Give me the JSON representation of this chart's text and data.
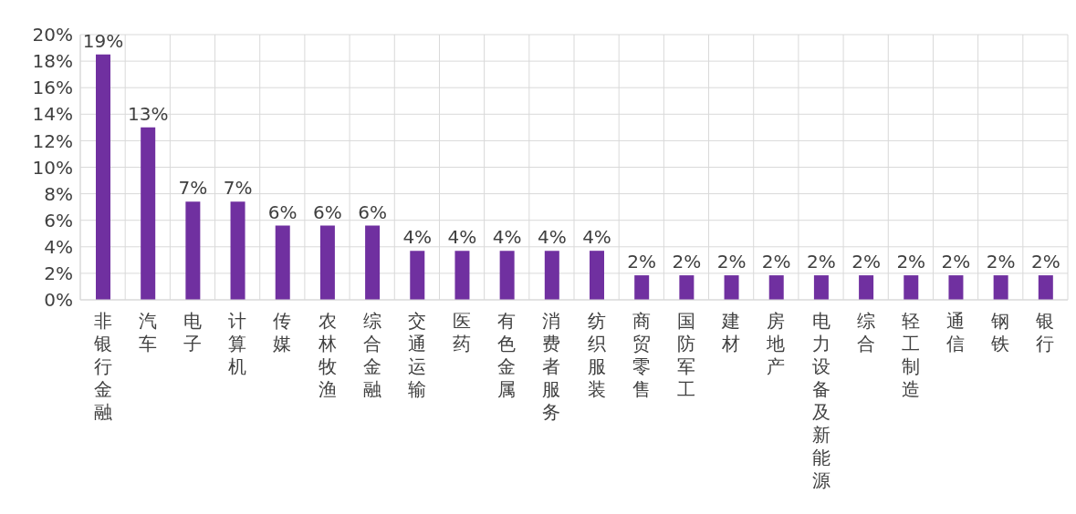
{
  "chart_data": {
    "type": "bar",
    "categories": [
      "非银行金融",
      "汽车",
      "电子",
      "计算机",
      "传媒",
      "农林牧渔",
      "综合金融",
      "交通运输",
      "医药",
      "有色金属",
      "消费者服务",
      "纺织服装",
      "商贸零售",
      "国防军工",
      "建材",
      "房地产",
      "电力设备及新能源",
      "综合",
      "轻工制造",
      "通信",
      "钢铁",
      "银行"
    ],
    "values": [
      18.5,
      13.0,
      7.4,
      7.4,
      5.6,
      5.6,
      5.6,
      3.7,
      3.7,
      3.7,
      3.7,
      3.7,
      1.85,
      1.85,
      1.85,
      1.85,
      1.85,
      1.85,
      1.85,
      1.85,
      1.85,
      1.85
    ],
    "value_labels": [
      "19%",
      "13%",
      "7%",
      "7%",
      "6%",
      "6%",
      "6%",
      "4%",
      "4%",
      "4%",
      "4%",
      "4%",
      "2%",
      "2%",
      "2%",
      "2%",
      "2%",
      "2%",
      "2%",
      "2%",
      "2%",
      "2%"
    ],
    "color": "#7030a0",
    "ylim": [
      0,
      20
    ],
    "yticks": [
      {
        "value": 0,
        "label": "0%"
      },
      {
        "value": 2,
        "label": "2%"
      },
      {
        "value": 4,
        "label": "4%"
      },
      {
        "value": 6,
        "label": "6%"
      },
      {
        "value": 8,
        "label": "8%"
      },
      {
        "value": 10,
        "label": "10%"
      },
      {
        "value": 12,
        "label": "12%"
      },
      {
        "value": 14,
        "label": "14%"
      },
      {
        "value": 16,
        "label": "16%"
      },
      {
        "value": 18,
        "label": "18%"
      },
      {
        "value": 20,
        "label": "20%"
      }
    ],
    "grid": true
  }
}
